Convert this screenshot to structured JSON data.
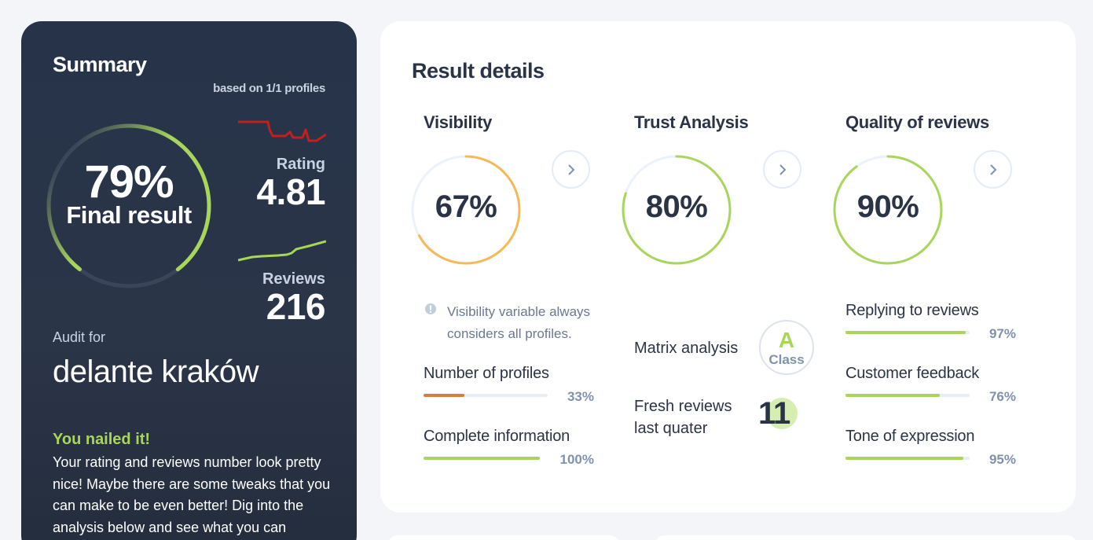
{
  "summary": {
    "title": "Summary",
    "based_on": "based on 1/1 profiles",
    "final_percent": "79%",
    "final_label": "Final result",
    "final_value": 0.79,
    "rating_label": "Rating",
    "rating_value": "4.81",
    "reviews_label": "Reviews",
    "reviews_value": "216",
    "audit_label": "Audit for",
    "audit_name": "delante kraków",
    "nailed": "You nailed it!",
    "paragraph": "Your rating and reviews number look pretty nice! Maybe there are some tweaks that you can make to be even better! Dig into the analysis below and see what you can",
    "colors": {
      "accent_green": "#a8d65a",
      "accent_red": "#c41e1e"
    }
  },
  "details": {
    "title": "Result details",
    "visibility": {
      "title": "Visibility",
      "percent": "67%",
      "value": 0.67,
      "color": "#f6b955",
      "note": "Visibility variable always considers all profiles.",
      "metrics": [
        {
          "label": "Number of profiles",
          "percent": "33%",
          "value": 0.33,
          "color": "#e07a3c"
        },
        {
          "label": "Complete information",
          "percent": "100%",
          "value": 1.0,
          "color": "#a8d65a"
        }
      ]
    },
    "trust": {
      "title": "Trust Analysis",
      "percent": "80%",
      "value": 0.8,
      "color": "#a8d65a",
      "matrix_label": "Matrix analysis",
      "class_letter": "A",
      "class_label": "Class",
      "fresh_label": "Fresh reviews last quater",
      "fresh_value": "11"
    },
    "quality": {
      "title": "Quality of reviews",
      "percent": "90%",
      "value": 0.9,
      "color": "#a8d65a",
      "metrics": [
        {
          "label": "Replying to reviews",
          "percent": "97%",
          "value": 0.97,
          "color": "#a8d65a"
        },
        {
          "label": "Customer feedback",
          "percent": "76%",
          "value": 0.76,
          "color": "#a8d65a"
        },
        {
          "label": "Tone of expression",
          "percent": "95%",
          "value": 0.95,
          "color": "#a8d65a"
        }
      ]
    }
  },
  "icons": {
    "arrow": "chevron-right-icon",
    "info": "info-icon"
  }
}
